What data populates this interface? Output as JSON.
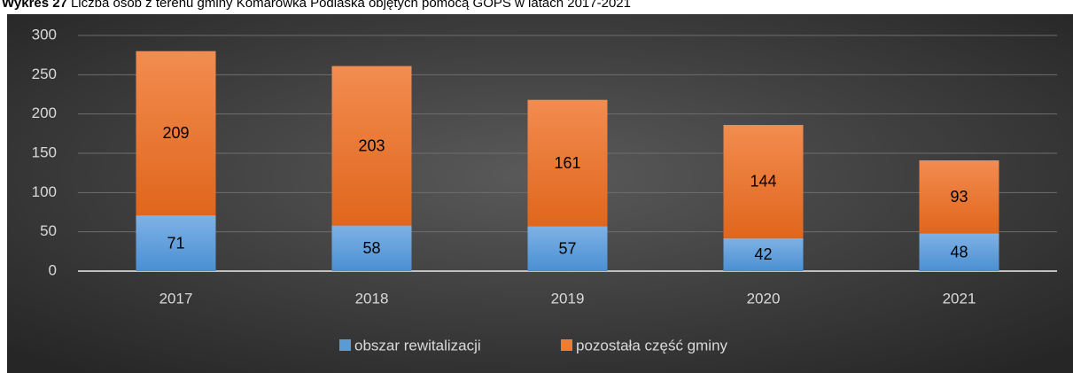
{
  "chart_data": {
    "type": "stacked_bar",
    "title_prefix": "Wykres 27",
    "title": "Liczba osób z terenu gminy Komarówka Podlaska objętych pomocą GOPS w latach 2017-2021",
    "categories": [
      "2017",
      "2018",
      "2019",
      "2020",
      "2021"
    ],
    "series": [
      {
        "name": "obszar rewitalizacji",
        "color": "#5b9bd5",
        "values": [
          71,
          58,
          57,
          42,
          48
        ]
      },
      {
        "name": "pozostała część gminy",
        "color": "#ed7d31",
        "values": [
          209,
          203,
          161,
          144,
          93
        ]
      }
    ],
    "ylim": [
      0,
      300
    ],
    "yticks": [
      0,
      50,
      100,
      150,
      200,
      250,
      300
    ],
    "grid": true,
    "legend": "bottom"
  }
}
